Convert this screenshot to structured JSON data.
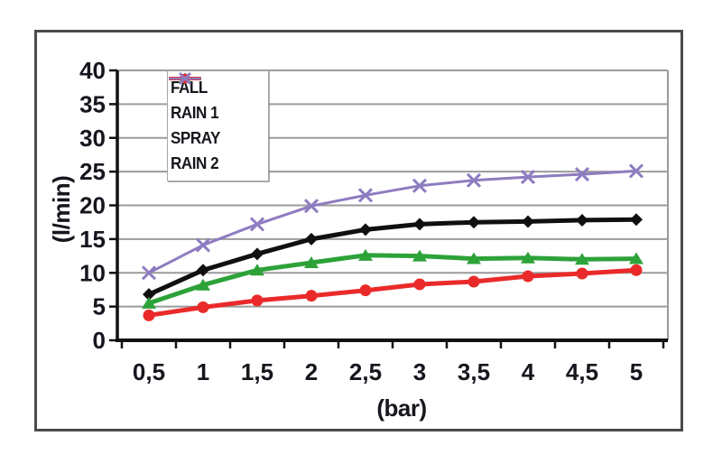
{
  "chart_data": {
    "type": "line",
    "title": "",
    "xlabel": "(bar)",
    "ylabel": "(l/min)",
    "x_categories": [
      "0,5",
      "1",
      "1,5",
      "2",
      "2,5",
      "3",
      "3,5",
      "4",
      "4,5",
      "5"
    ],
    "x_values": [
      0.5,
      1,
      1.5,
      2,
      2.5,
      3,
      3.5,
      4,
      4.5,
      5
    ],
    "ylim": [
      0,
      40
    ],
    "ytick_step": 5,
    "ytick_labels": [
      "0",
      "5",
      "10",
      "15",
      "20",
      "25",
      "30",
      "35",
      "40"
    ],
    "grid": true,
    "legend_position": "upper-left-inside",
    "series": [
      {
        "name": "FALL",
        "color": "#101010",
        "marker": "diamond",
        "line_width": 5,
        "values": [
          6.8,
          10.4,
          12.8,
          15.0,
          16.4,
          17.2,
          17.5,
          17.6,
          17.8,
          17.9
        ]
      },
      {
        "name": "RAIN 1",
        "color": "#2da239",
        "marker": "triangle",
        "line_width": 5,
        "values": [
          5.5,
          8.2,
          10.4,
          11.5,
          12.6,
          12.5,
          12.1,
          12.2,
          12.0,
          12.1
        ]
      },
      {
        "name": "SPRAY",
        "color": "#ea2a2a",
        "marker": "circle",
        "line_width": 5,
        "values": [
          3.7,
          4.9,
          5.9,
          6.6,
          7.4,
          8.3,
          8.7,
          9.5,
          9.9,
          10.4
        ]
      },
      {
        "name": "RAIN 2",
        "color": "#8e7cc0",
        "marker": "x",
        "line_width": 3,
        "values": [
          10.0,
          14.1,
          17.2,
          19.9,
          21.5,
          22.9,
          23.7,
          24.2,
          24.6,
          25.1
        ]
      }
    ]
  },
  "styles": {
    "grid_color": "#9b9b9b",
    "axis_color": "#111111",
    "text_color": "#16161e",
    "box_border_color": "#4b4b4b",
    "legend_border_color": "#a6a6a6",
    "background": "#ffffff"
  }
}
